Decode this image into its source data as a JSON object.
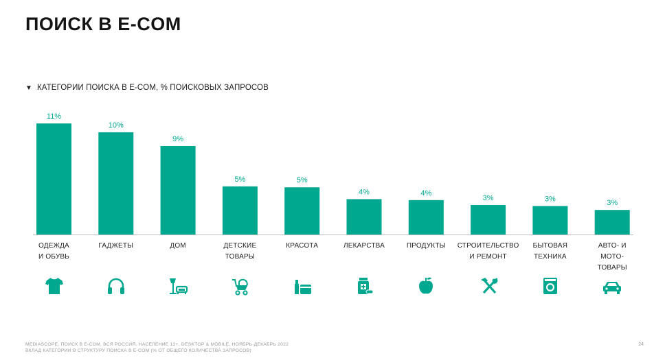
{
  "page": {
    "title": "ПОИСК В E-COM",
    "subtitle": "КАТЕГОРИИ ПОИСКА В E-COM, % ПОИСКОВЫХ ЗАПРОСОВ",
    "subtitle_marker": "▼",
    "footer_line1": "MEDIASCOPE, ПОИСК В E-COM, ВСЯ РОССИЯ, НАСЕЛЕНИЕ 12+, DESKTOP & MOBILE, НОЯБРЬ-ДЕКАБРЬ 2022",
    "footer_line2": "ВКЛАД КАТЕГОРИИ В СТРУКТУРУ ПОИСКА В E-COM (% ОТ ОБЩЕГО КОЛИЧЕСТВА ЗАПРОСОВ)",
    "page_number": "24"
  },
  "chart_data": {
    "type": "bar",
    "title": "КАТЕГОРИИ ПОИСКА В E-COM, % ПОИСКОВЫХ ЗАПРОСОВ",
    "categories": [
      "ОДЕЖДА И ОБУВЬ",
      "ГАДЖЕТЫ",
      "ДОМ",
      "ДЕТСКИЕ ТОВАРЫ",
      "КРАСОТА",
      "ЛЕКАРСТВА",
      "ПРОДУКТЫ",
      "СТРОИТЕЛЬСТВО И РЕМОНТ",
      "БЫТОВАЯ ТЕХНИКА",
      "АВТО- И МОТО-ТОВАРЫ"
    ],
    "category_lines": [
      [
        "ОДЕЖДА",
        "И ОБУВЬ"
      ],
      [
        "ГАДЖЕТЫ"
      ],
      [
        "ДОМ"
      ],
      [
        "ДЕТСКИЕ",
        "ТОВАРЫ"
      ],
      [
        "КРАСОТА"
      ],
      [
        "ЛЕКАРСТВА"
      ],
      [
        "ПРОДУКТЫ"
      ],
      [
        "СТРОИТЕЛЬСТВО",
        "И РЕМОНТ"
      ],
      [
        "БЫТОВАЯ",
        "ТЕХНИКА"
      ],
      [
        "АВТО- И",
        "МОТО-",
        "ТОВАРЫ"
      ]
    ],
    "values": [
      11.3,
      10.4,
      9.0,
      4.9,
      4.8,
      3.6,
      3.5,
      3.0,
      2.9,
      2.5
    ],
    "labels": [
      "11%",
      "10%",
      "9%",
      "5%",
      "5%",
      "4%",
      "4%",
      "3%",
      "3%",
      "3%"
    ],
    "ylim": [
      0,
      11.3
    ],
    "grid": false,
    "bar_color": "#00a88f",
    "label_color": "#00a88f",
    "icons": [
      "tshirt-icon",
      "headphones-icon",
      "lamp-sofa-icon",
      "stroller-icon",
      "cosmetics-icon",
      "medicine-icon",
      "apple-icon",
      "hammer-icon",
      "washing-machine-icon",
      "car-icon"
    ]
  }
}
